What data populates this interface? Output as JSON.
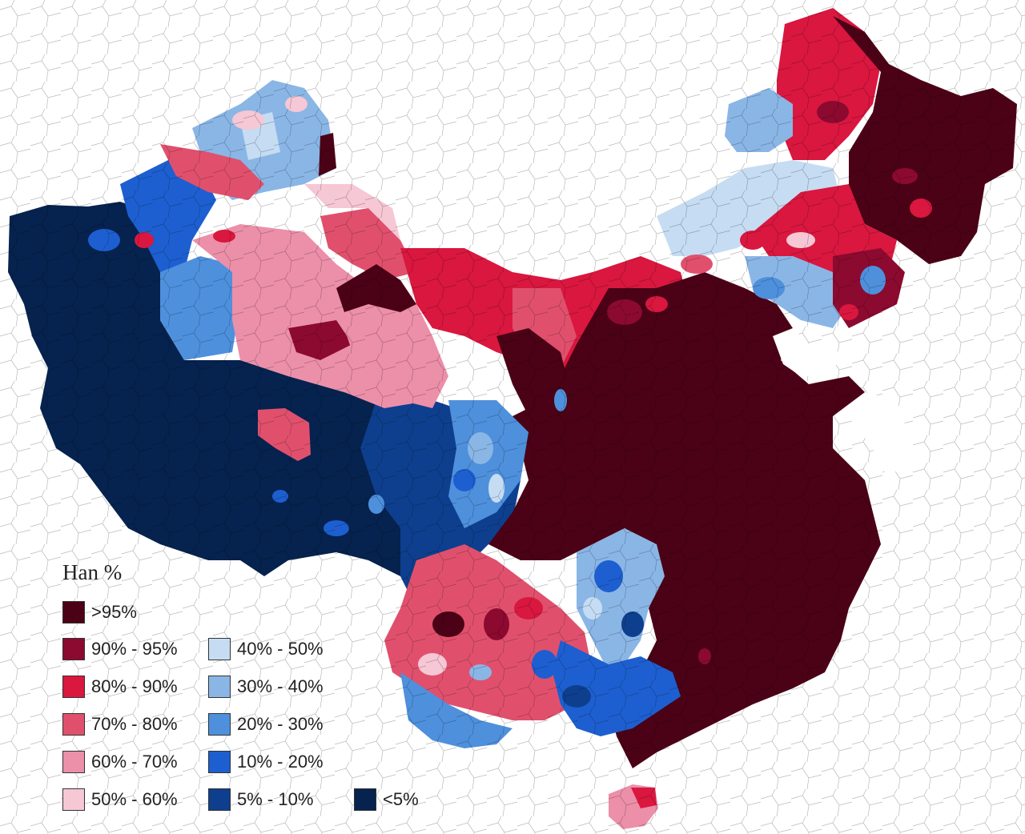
{
  "legend": {
    "title": "Han %",
    "items": [
      {
        "label": ">95%",
        "color": "#4b0216"
      },
      {
        "label": "90% - 95%",
        "color": "#8c0a2f"
      },
      {
        "label": "80% - 90%",
        "color": "#d9173f"
      },
      {
        "label": "70% - 80%",
        "color": "#e0506c"
      },
      {
        "label": "60% - 70%",
        "color": "#ec8fa9"
      },
      {
        "label": "50% - 60%",
        "color": "#f6c7d4"
      },
      {
        "label": "40% - 50%",
        "color": "#c6dcf3"
      },
      {
        "label": "30% - 40%",
        "color": "#8ab6e6"
      },
      {
        "label": "20% - 30%",
        "color": "#4e90dc"
      },
      {
        "label": "10% - 20%",
        "color": "#1d5fd0"
      },
      {
        "label": "5% - 10%",
        "color": "#0e3f8e"
      },
      {
        "label": "<5%",
        "color": "#06224e"
      }
    ]
  }
}
